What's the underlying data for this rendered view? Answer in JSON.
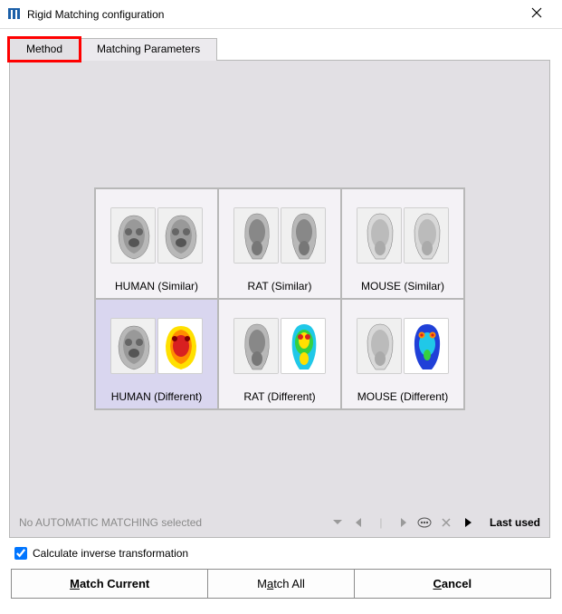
{
  "window": {
    "title": "Rigid Matching configuration"
  },
  "tabs": [
    {
      "label": "Method",
      "active": true,
      "highlight": true
    },
    {
      "label": "Matching Parameters",
      "active": false,
      "highlight": false
    }
  ],
  "options": [
    {
      "label": "HUMAN (Similar)",
      "selected": false,
      "kind": "human",
      "mode": "similar"
    },
    {
      "label": "RAT (Similar)",
      "selected": false,
      "kind": "rat",
      "mode": "similar"
    },
    {
      "label": "MOUSE (Similar)",
      "selected": false,
      "kind": "mouse",
      "mode": "similar"
    },
    {
      "label": "HUMAN (Different)",
      "selected": true,
      "kind": "human",
      "mode": "different"
    },
    {
      "label": "RAT (Different)",
      "selected": false,
      "kind": "rat",
      "mode": "different"
    },
    {
      "label": "MOUSE (Different)",
      "selected": false,
      "kind": "mouse",
      "mode": "different"
    }
  ],
  "status": {
    "text": "No AUTOMATIC MATCHING selected",
    "last_label": "Last used"
  },
  "checkbox": {
    "label": "Calculate inverse transformation",
    "checked": true
  },
  "buttons": {
    "match_current": "Match Current",
    "match_all": "Match All",
    "cancel": "Cancel"
  },
  "colors": {
    "panel_bg": "#e2e0e4",
    "option_bg": "#f4f2f6",
    "option_selected_bg": "#d9d6ef",
    "border": "#b8b8b8",
    "highlight": "#ff0000",
    "muted_text": "#8a8a8a",
    "pet_red": "#d82020",
    "pet_orange": "#ff8c00",
    "pet_yellow": "#ffe000",
    "pet_green": "#35d040",
    "pet_cyan": "#20c8e8",
    "pet_blue": "#2040d8"
  }
}
